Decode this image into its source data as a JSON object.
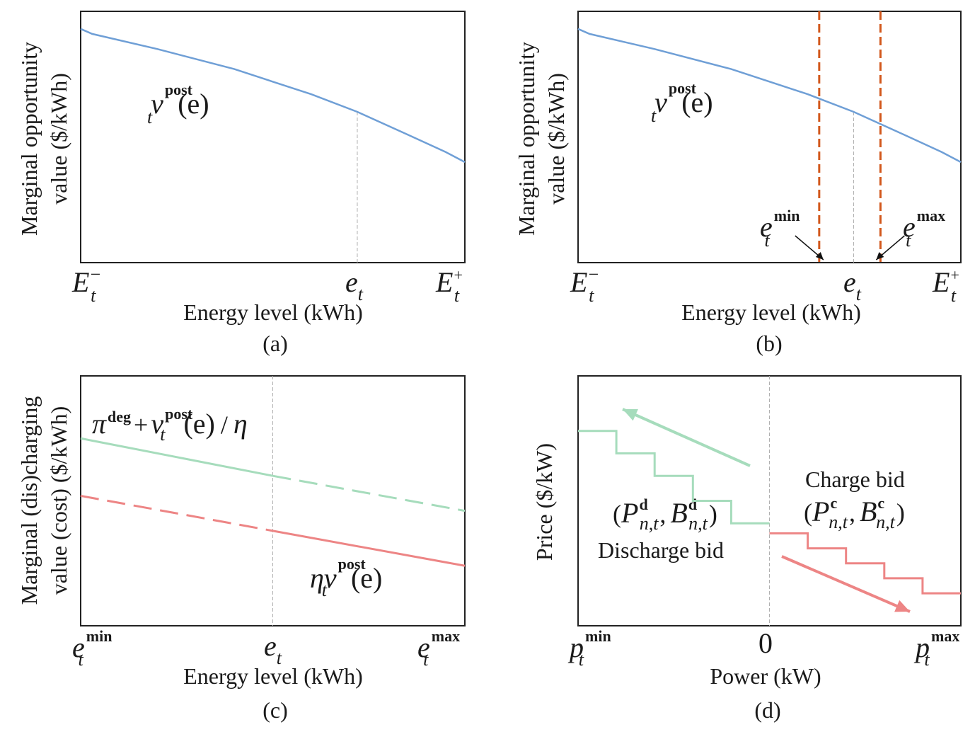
{
  "colors": {
    "blue": "#6f9fd6",
    "green": "#a6dcbc",
    "red": "#ed8585",
    "orange": "#d2581c",
    "frame": "#222222",
    "guide": "#b0b0b0"
  },
  "chart_data": [
    {
      "id": "a",
      "type": "line",
      "caption": "(a)",
      "xlabel": "Energy level (kWh)",
      "ylabel_line1": "Marginal opportunity",
      "ylabel_line2": "value ($/kWh)",
      "x_ticks": [
        {
          "sym": "E",
          "sub": "t",
          "sup": "−",
          "at": 0
        },
        {
          "sym": "e",
          "sub": "t",
          "sup": "",
          "at": 0.72
        },
        {
          "sym": "E",
          "sub": "t",
          "sup": "+",
          "at": 1
        }
      ],
      "xlim": [
        0,
        1
      ],
      "ylim": [
        0,
        1
      ],
      "series": [
        {
          "name": "v_t^post(e)",
          "x": [
            0,
            0.03,
            0.2,
            0.4,
            0.6,
            0.72,
            0.85,
            0.95,
            1
          ],
          "y": [
            0.93,
            0.91,
            0.85,
            0.77,
            0.67,
            0.6,
            0.51,
            0.44,
            0.4
          ]
        }
      ],
      "annotation": {
        "sym": "v",
        "sup": "post",
        "sub": "t",
        "arg": "(e)"
      }
    },
    {
      "id": "b",
      "type": "line",
      "caption": "(b)",
      "xlabel": "Energy level (kWh)",
      "ylabel_line1": "Marginal opportunity",
      "ylabel_line2": "value ($/kWh)",
      "x_ticks": [
        {
          "sym": "E",
          "sub": "t",
          "sup": "−",
          "at": 0
        },
        {
          "sym": "e",
          "sub": "t",
          "sup": "",
          "at": 0.72
        },
        {
          "sym": "E",
          "sub": "t",
          "sup": "+",
          "at": 1
        }
      ],
      "xlim": [
        0,
        1
      ],
      "ylim": [
        0,
        1
      ],
      "series": [
        {
          "name": "v_t^post(e)",
          "x": [
            0,
            0.03,
            0.2,
            0.4,
            0.6,
            0.72,
            0.85,
            0.95,
            1
          ],
          "y": [
            0.93,
            0.91,
            0.85,
            0.77,
            0.67,
            0.6,
            0.51,
            0.44,
            0.4
          ]
        }
      ],
      "vertical_lines": [
        {
          "name": "e_t^min",
          "at": 0.63,
          "sym": "e",
          "sup": "min",
          "sub": "t"
        },
        {
          "name": "e_t^max",
          "at": 0.79,
          "sym": "e",
          "sup": "max",
          "sub": "t"
        }
      ],
      "annotation": {
        "sym": "v",
        "sup": "post",
        "sub": "t",
        "arg": "(e)"
      }
    },
    {
      "id": "c",
      "type": "line",
      "caption": "(c)",
      "xlabel": "Energy level (kWh)",
      "ylabel_line1": "Marginal (dis)charging",
      "ylabel_line2": "value (cost) ($/kWh)",
      "x_ticks": [
        {
          "sym": "e",
          "sub": "t",
          "sup": "min",
          "at": 0
        },
        {
          "sym": "e",
          "sub": "t",
          "sup": "",
          "at": 0.5
        },
        {
          "sym": "e",
          "sub": "t",
          "sup": "max",
          "at": 1
        }
      ],
      "xlim": [
        0,
        1
      ],
      "ylim": [
        0,
        1
      ],
      "series": [
        {
          "name": "π^deg + v_t^post(e)/η",
          "x": [
            0,
            0.5,
            1
          ],
          "y": [
            0.75,
            0.6,
            0.46
          ],
          "solid_until": 0.5
        },
        {
          "name": "η v_t^post(e)",
          "x": [
            0,
            0.5,
            1
          ],
          "y": [
            0.52,
            0.38,
            0.24
          ],
          "dashed_until": 0.5
        }
      ],
      "annotation_green": {
        "pi": "π",
        "pi_sup": "deg",
        "plus": "+",
        "sym": "v",
        "sup": "post",
        "sub": "t",
        "arg": "(e)",
        "div": "/",
        "eta": "η"
      },
      "annotation_red": {
        "eta": "η",
        "sym": "v",
        "sup": "post",
        "sub": "t",
        "arg": "(e)"
      }
    },
    {
      "id": "d",
      "type": "step",
      "caption": "(d)",
      "xlabel": "Power (kW)",
      "ylabel": "Price ($/kW)",
      "x_ticks": [
        {
          "sym": "p",
          "sub": "t",
          "sup": "min",
          "at": -1
        },
        {
          "sym": "0",
          "sub": "",
          "sup": "",
          "at": 0
        },
        {
          "sym": "p",
          "sub": "t",
          "sup": "max",
          "at": 1
        }
      ],
      "xlim": [
        -1,
        1
      ],
      "ylim": [
        0,
        1
      ],
      "series": [
        {
          "name": "Discharge bid",
          "steps": [
            [
              -1,
              0.78
            ],
            [
              -0.8,
              0.69
            ],
            [
              -0.6,
              0.6
            ],
            [
              -0.4,
              0.5
            ],
            [
              -0.2,
              0.41
            ],
            [
              0,
              0.41
            ]
          ]
        },
        {
          "name": "Charge bid",
          "steps": [
            [
              0,
              0.37
            ],
            [
              0.2,
              0.31
            ],
            [
              0.4,
              0.25
            ],
            [
              0.6,
              0.19
            ],
            [
              0.8,
              0.13
            ],
            [
              1,
              0.13
            ]
          ]
        }
      ],
      "discharge_label": "Discharge bid",
      "charge_label": "Charge bid",
      "discharge_tuple": {
        "open": "(",
        "P": "P",
        "P_sub": "n,t",
        "P_sup": "d",
        "comma": ",",
        "B": "B",
        "B_sub": "n,t",
        "B_sup": "d",
        "close": ")"
      },
      "charge_tuple": {
        "open": "(",
        "P": "P",
        "P_sub": "n,t",
        "P_sup": "c",
        "comma": ",",
        "B": "B",
        "B_sub": "n,t",
        "B_sup": "c",
        "close": ")"
      }
    }
  ]
}
